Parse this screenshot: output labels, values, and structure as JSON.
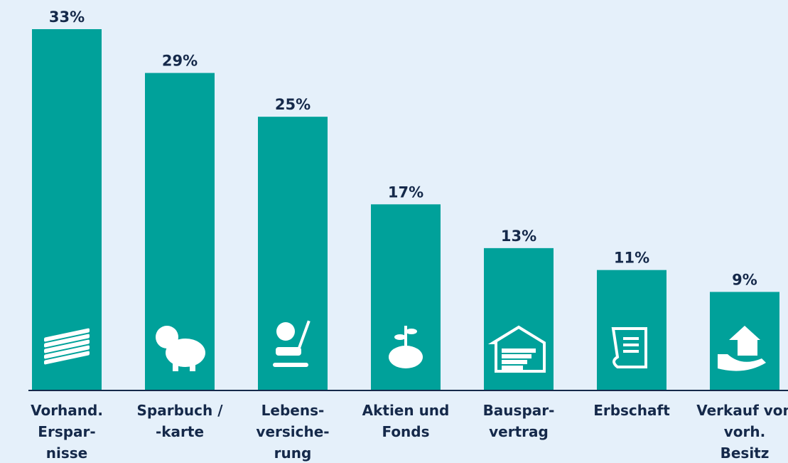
{
  "chart_data": {
    "type": "bar",
    "categories": [
      [
        "Vorhand.",
        "Erspar-",
        "nisse"
      ],
      [
        "Sparbuch /",
        "-karte"
      ],
      [
        "Lebens-",
        "versiche-",
        "rung"
      ],
      [
        "Aktien und",
        "Fonds"
      ],
      [
        "Bauspar-",
        "vertrag"
      ],
      [
        "Erbschaft"
      ],
      [
        "Verkauf von",
        "vorh.",
        "Besitz"
      ]
    ],
    "values": [
      33,
      29,
      25,
      17,
      13,
      11,
      9
    ],
    "value_labels": [
      "33%",
      "29%",
      "25%",
      "17%",
      "13%",
      "11%",
      "9%"
    ],
    "color": "#00a19a"
  }
}
